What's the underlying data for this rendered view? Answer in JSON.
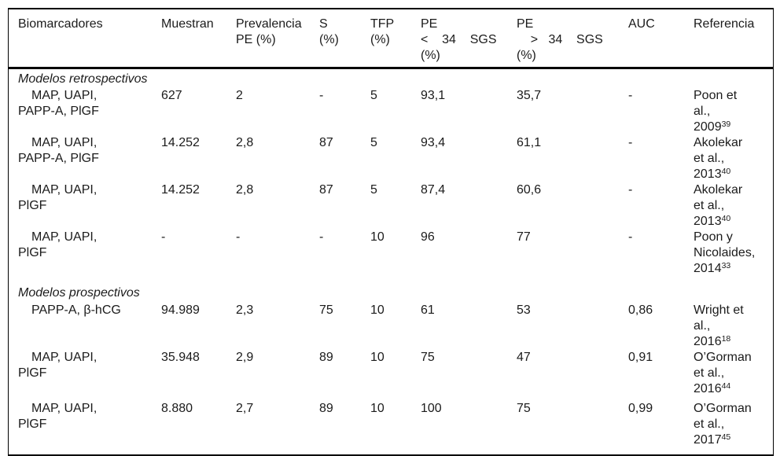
{
  "colors": {
    "background": "#ffffff",
    "text": "#1b1b1b",
    "border": "#000000"
  },
  "table": {
    "headers": {
      "biomarcadores": "Biomarcadores",
      "muestran": "Muestran",
      "prevalencia": "Prevalencia\nPE (%)",
      "s": "S\n(%)",
      "tfp": "TFP\n(%)",
      "pe_lt34": "PE\n<    34    SGS\n(%)",
      "pe_gt34": "PE\n    >   34    SGS\n(%)",
      "auc": "AUC",
      "referencia": "Referencia"
    },
    "rows": [
      {
        "section": "Modelos retrospectivos"
      },
      {
        "biomarcadores": "MAP, UAPI,\nPAPP-A, PlGF",
        "muestran": "627",
        "prevalencia": "2",
        "s": "-",
        "tfp": "5",
        "pe_lt34": "93,1",
        "pe_gt34": "35,7",
        "auc": "-",
        "referencia": {
          "text": "Poon et al., 2009",
          "sup": "39"
        }
      },
      {
        "biomarcadores": "MAP, UAPI,\nPAPP-A, PlGF",
        "muestran": "14.252",
        "prevalencia": "2,8",
        "s": "87",
        "tfp": "5",
        "pe_lt34": "93,4",
        "pe_gt34": "61,1",
        "auc": "-",
        "referencia": {
          "text": "Akolekar et al., 2013",
          "sup": "40"
        }
      },
      {
        "biomarcadores": "MAP, UAPI,\nPlGF",
        "muestran": "14.252",
        "prevalencia": "2,8",
        "s": "87",
        "tfp": "5",
        "pe_lt34": "87,4",
        "pe_gt34": "60,6",
        "auc": "-",
        "referencia": {
          "text": "Akolekar et al., 2013",
          "sup": "40"
        }
      },
      {
        "biomarcadores": "MAP, UAPI,\nPlGF",
        "muestran": "-",
        "prevalencia": "-",
        "s": "-",
        "tfp": "10",
        "pe_lt34": "96",
        "pe_gt34": "77",
        "auc": "-",
        "referencia": {
          "text": "Poon y Nicolaides, 2014",
          "sup": "33"
        }
      },
      {
        "section": "Modelos prospectivos"
      },
      {
        "biomarcadores": "PAPP-A, β-hCG",
        "muestran": "94.989",
        "prevalencia": "2,3",
        "s": "75",
        "tfp": "10",
        "pe_lt34": "61",
        "pe_gt34": "53",
        "auc": "0,86",
        "referencia": {
          "text": "Wright et al., 2016",
          "sup": "18"
        }
      },
      {
        "biomarcadores": "MAP, UAPI,\nPlGF",
        "muestran": "35.948",
        "prevalencia": "2,9",
        "s": "89",
        "tfp": "10",
        "pe_lt34": "75",
        "pe_gt34": "47",
        "auc": "0,91",
        "referencia": {
          "text": "O’Gorman et al., 2016",
          "sup": "44"
        }
      },
      {
        "biomarcadores": "MAP, UAPI,\nPlGF",
        "muestran": "8.880",
        "prevalencia": "2,7",
        "s": "89",
        "tfp": "10",
        "pe_lt34": "100",
        "pe_gt34": "75",
        "auc": "0,99",
        "referencia": {
          "text": "O’Gorman et al., 2017",
          "sup": "45"
        }
      }
    ]
  }
}
